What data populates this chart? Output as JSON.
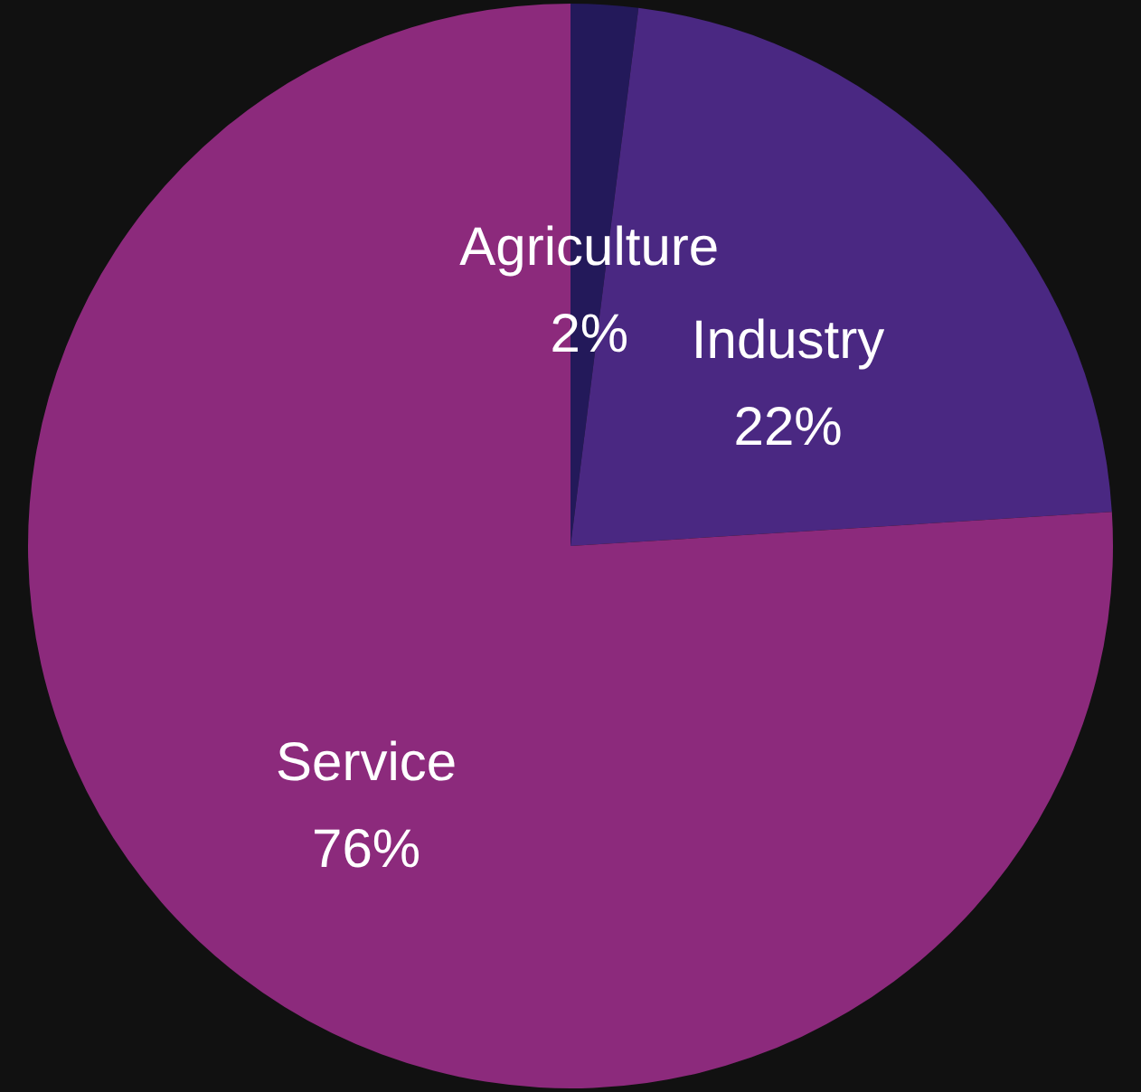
{
  "chart_data": {
    "type": "pie",
    "categories": [
      "Agriculture",
      "Industry",
      "Service"
    ],
    "values": [
      2,
      22,
      76
    ],
    "value_labels": [
      "2%",
      "22%",
      "76%"
    ],
    "colors": [
      "#23195a",
      "#4a2882",
      "#8c2a7c"
    ],
    "legend": false
  }
}
